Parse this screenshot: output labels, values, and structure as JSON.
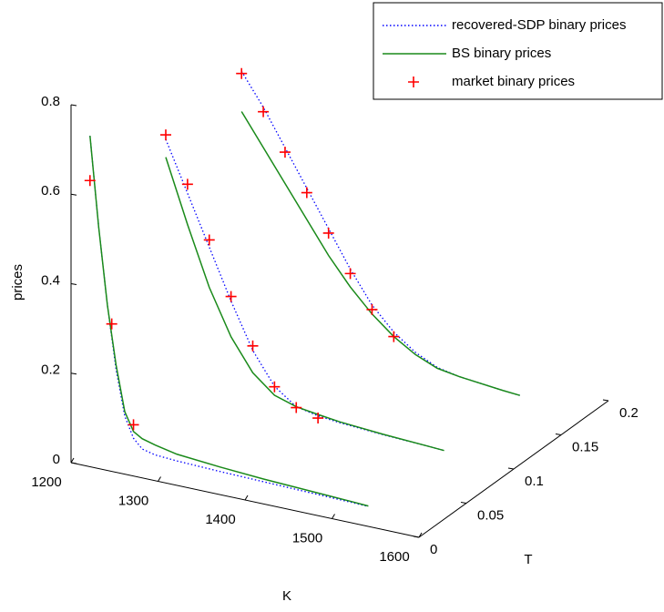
{
  "chart_data": {
    "type": "line3d",
    "xlabel": "K",
    "ylabel": "T",
    "zlabel": "prices",
    "xlim": [
      1200,
      1600
    ],
    "xticks": [
      1200,
      1300,
      1400,
      1500,
      1600
    ],
    "ylim": [
      0,
      0.2
    ],
    "yticks": [
      0,
      0.05,
      0.1,
      0.15,
      0.2
    ],
    "zlim": [
      0,
      0.8
    ],
    "zticks": [
      0,
      0.2,
      0.4,
      0.6,
      0.8
    ],
    "legend": "top-right",
    "series": [
      {
        "name": "recovered-SDP binary prices",
        "color": "#0000ff",
        "style": "dotted",
        "curves": [
          {
            "t": 0.02,
            "x": [
              1200,
              1210,
              1220,
              1230,
              1240,
              1250,
              1260,
              1275,
              1300,
              1350,
              1400,
              1450,
              1500,
              1520
            ],
            "values": [
              0.7,
              0.5,
              0.33,
              0.19,
              0.09,
              0.045,
              0.025,
              0.018,
              0.015,
              0.012,
              0.01,
              0.008,
              0.006,
              0.005
            ]
          },
          {
            "t": 0.1,
            "x": [
              1200,
              1225,
              1250,
              1275,
              1300,
              1325,
              1350,
              1375,
              1400,
              1450,
              1500,
              1520
            ],
            "values": [
              0.57,
              0.46,
              0.35,
              0.24,
              0.14,
              0.07,
              0.035,
              0.025,
              0.02,
              0.014,
              0.01,
              0.008
            ]
          },
          {
            "t": 0.18,
            "x": [
              1200,
              1225,
              1250,
              1275,
              1300,
              1325,
              1350,
              1375,
              1400,
              1425,
              1450,
              1500,
              1520
            ],
            "values": [
              0.6,
              0.53,
              0.45,
              0.37,
              0.29,
              0.21,
              0.14,
              0.09,
              0.055,
              0.032,
              0.022,
              0.012,
              0.009
            ]
          }
        ]
      },
      {
        "name": "BS binary prices",
        "color": "#1a8a1a",
        "style": "solid",
        "curves": [
          {
            "t": 0.02,
            "x": [
              1200,
              1210,
              1220,
              1230,
              1240,
              1250,
              1260,
              1275,
              1300,
              1350,
              1400,
              1450,
              1500,
              1520
            ],
            "values": [
              0.7,
              0.5,
              0.33,
              0.2,
              0.1,
              0.06,
              0.048,
              0.04,
              0.03,
              0.022,
              0.016,
              0.012,
              0.008,
              0.006
            ]
          },
          {
            "t": 0.1,
            "x": [
              1200,
              1225,
              1250,
              1275,
              1300,
              1325,
              1350,
              1375,
              1400,
              1450,
              1500,
              1520
            ],
            "values": [
              0.53,
              0.39,
              0.26,
              0.16,
              0.09,
              0.05,
              0.035,
              0.028,
              0.022,
              0.015,
              0.01,
              0.008
            ]
          },
          {
            "t": 0.18,
            "x": [
              1200,
              1225,
              1250,
              1275,
              1300,
              1325,
              1350,
              1375,
              1400,
              1425,
              1450,
              1500,
              1520
            ],
            "values": [
              0.51,
              0.44,
              0.37,
              0.3,
              0.23,
              0.17,
              0.12,
              0.08,
              0.05,
              0.03,
              0.022,
              0.012,
              0.009
            ]
          }
        ]
      },
      {
        "name": "market binary prices",
        "color": "#ff0000",
        "style": "plus",
        "curves": [
          {
            "t": 0.02,
            "x": [
              1200,
              1225,
              1250
            ],
            "values": [
              0.6,
              0.29,
              0.075
            ]
          },
          {
            "t": 0.1,
            "x": [
              1200,
              1225,
              1250,
              1275,
              1300,
              1325,
              1350,
              1375
            ],
            "values": [
              0.58,
              0.48,
              0.366,
              0.25,
              0.15,
              0.069,
              0.033,
              0.02
            ]
          },
          {
            "t": 0.18,
            "x": [
              1200,
              1225,
              1250,
              1275,
              1300,
              1325,
              1350,
              1375
            ],
            "values": [
              0.595,
              0.52,
              0.44,
              0.36,
              0.28,
              0.2,
              0.13,
              0.08
            ]
          }
        ]
      }
    ]
  }
}
